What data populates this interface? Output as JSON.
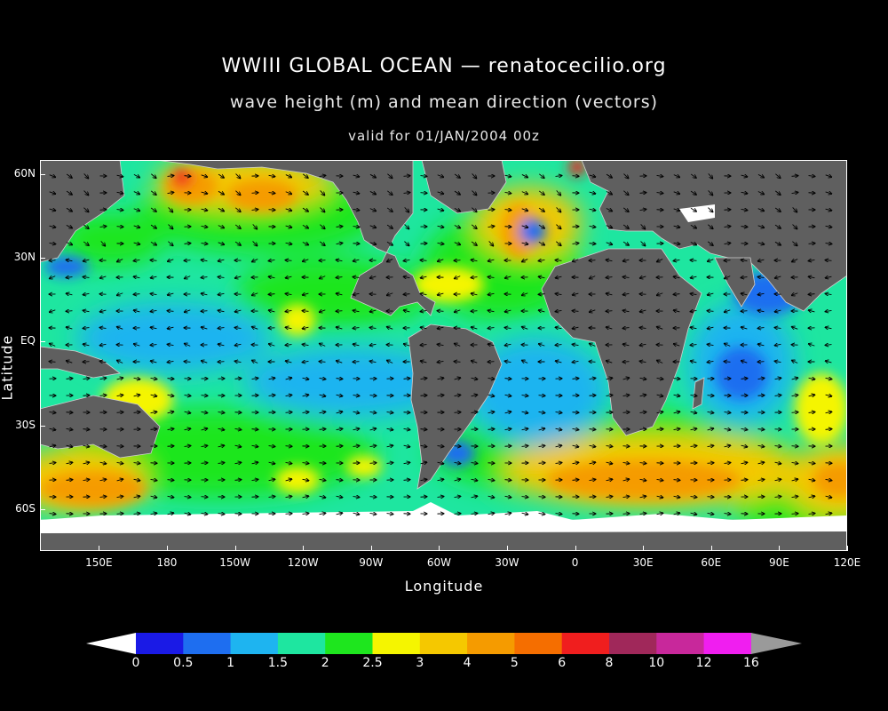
{
  "header": {
    "title": "WWIII GLOBAL OCEAN — renatocecilio.org",
    "subtitle": "wave height (m) and mean direction (vectors)",
    "valid": "valid for 01/JAN/2004 00z"
  },
  "axes": {
    "xlabel": "Longitude",
    "ylabel": "Latitude",
    "x_ticks": [
      {
        "label": "150E",
        "lon": 150
      },
      {
        "label": "180",
        "lon": 180
      },
      {
        "label": "150W",
        "lon": 210
      },
      {
        "label": "120W",
        "lon": 240
      },
      {
        "label": "90W",
        "lon": 270
      },
      {
        "label": "60W",
        "lon": 300
      },
      {
        "label": "30W",
        "lon": 330
      },
      {
        "label": "0",
        "lon": 360
      },
      {
        "label": "30E",
        "lon": 390
      },
      {
        "label": "60E",
        "lon": 420
      },
      {
        "label": "90E",
        "lon": 450
      },
      {
        "label": "120E",
        "lon": 480
      }
    ],
    "y_ticks": [
      {
        "label": "60N",
        "lat": 60
      },
      {
        "label": "30N",
        "lat": 30
      },
      {
        "label": "EQ",
        "lat": 0
      },
      {
        "label": "30S",
        "lat": -30
      },
      {
        "label": "60S",
        "lat": -60
      }
    ],
    "lon_range": [
      124,
      480
    ],
    "lat_range": [
      -75,
      65
    ]
  },
  "colorbar": {
    "labels": [
      "0",
      "0.5",
      "1",
      "1.5",
      "2",
      "2.5",
      "3",
      "4",
      "5",
      "6",
      "8",
      "10",
      "12",
      "16"
    ],
    "colors": [
      "#1a1ae6",
      "#1e6ef0",
      "#1eb4f0",
      "#1ee6a0",
      "#1ee61e",
      "#f5f500",
      "#f5c800",
      "#f59b00",
      "#f56e00",
      "#f01e1e",
      "#a0285a",
      "#c8289b",
      "#f01ef0"
    ],
    "over_color": "#9a9a9a",
    "under_color": "#ffffff"
  },
  "map": {
    "land_color": "#5f5f5f",
    "ice_color": "#ffffff",
    "arrow_color": "#000000"
  }
}
